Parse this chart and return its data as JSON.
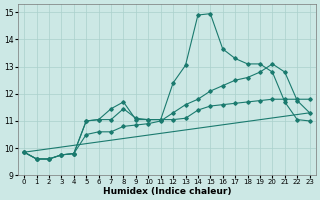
{
  "xlabel": "Humidex (Indice chaleur)",
  "bg_color": "#cce8e5",
  "grid_color": "#aad0cc",
  "line_color": "#1a7a6e",
  "xlim": [
    -0.5,
    23.5
  ],
  "ylim": [
    9,
    15.3
  ],
  "yticks": [
    9,
    10,
    11,
    12,
    13,
    14,
    15
  ],
  "xticks": [
    0,
    1,
    2,
    3,
    4,
    5,
    6,
    7,
    8,
    9,
    10,
    11,
    12,
    13,
    14,
    15,
    16,
    17,
    18,
    19,
    20,
    21,
    22,
    23
  ],
  "line1_x": [
    0,
    1,
    2,
    3,
    4,
    5,
    6,
    7,
    8,
    9,
    10,
    11,
    12,
    13,
    14,
    15,
    16,
    17,
    18,
    19,
    20,
    21,
    22,
    23
  ],
  "line1_y": [
    9.85,
    9.6,
    9.6,
    9.75,
    9.8,
    11.0,
    11.05,
    11.05,
    11.45,
    11.1,
    11.05,
    11.05,
    12.4,
    13.05,
    14.9,
    14.95,
    13.65,
    13.3,
    13.1,
    13.1,
    12.8,
    11.7,
    11.05,
    11.0
  ],
  "line2_x": [
    0,
    1,
    2,
    3,
    4,
    5,
    6,
    7,
    8,
    9,
    10,
    11,
    12,
    13,
    14,
    15,
    16,
    17,
    18,
    19,
    20,
    21,
    22,
    23
  ],
  "line2_y": [
    9.85,
    9.6,
    9.6,
    9.75,
    9.8,
    10.5,
    10.6,
    10.6,
    10.8,
    10.85,
    10.9,
    11.0,
    11.3,
    11.6,
    11.8,
    12.1,
    12.3,
    12.5,
    12.6,
    12.8,
    13.1,
    12.8,
    11.75,
    11.3
  ],
  "line3_x": [
    0,
    1,
    2,
    3,
    4,
    5,
    6,
    7,
    8,
    9,
    10,
    11,
    12,
    13,
    14,
    15,
    16,
    17,
    18,
    19,
    20,
    21,
    22,
    23
  ],
  "line3_y": [
    9.85,
    9.6,
    9.6,
    9.75,
    9.8,
    11.0,
    11.05,
    11.45,
    11.7,
    11.05,
    11.05,
    11.05,
    11.05,
    11.1,
    11.4,
    11.55,
    11.6,
    11.65,
    11.7,
    11.75,
    11.8,
    11.8,
    11.8,
    11.8
  ],
  "line4_x": [
    0,
    23
  ],
  "line4_y": [
    9.85,
    11.3
  ]
}
